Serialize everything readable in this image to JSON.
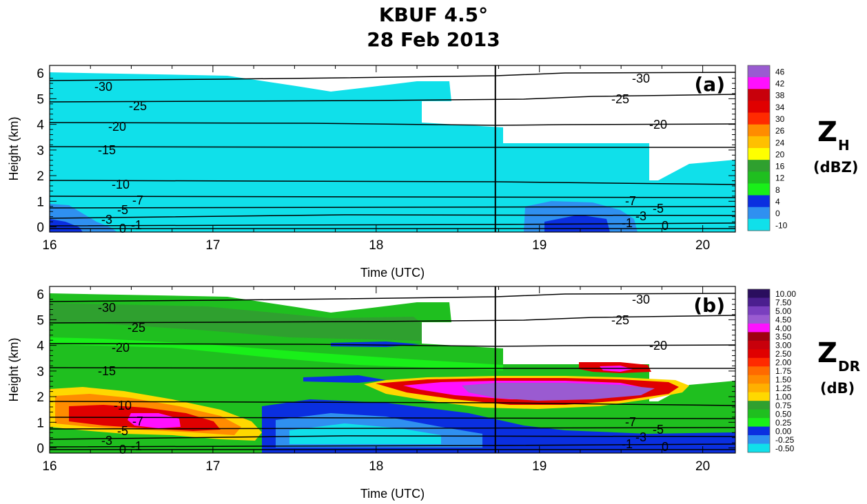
{
  "title": {
    "line1": "KBUF 4.5°",
    "line2": "28 Feb 2013"
  },
  "chart_data": [
    {
      "type": "heatmap",
      "panel_label": "(a)",
      "quantity": "Z",
      "quantity_subscript": "H",
      "unit": "(dBZ)",
      "xlabel": "Time (UTC)",
      "ylabel": "Height (km)",
      "x_ticks": [
        16,
        17,
        18,
        19,
        20
      ],
      "y_ticks": [
        0,
        1,
        2,
        3,
        4,
        5,
        6
      ],
      "xlim": [
        16,
        20.2
      ],
      "ylim": [
        -0.2,
        6.3
      ],
      "vertical_marker_time": 18.73,
      "colorbar": {
        "labels": [
          "46",
          "42",
          "38",
          "34",
          "30",
          "26",
          "24",
          "20",
          "16",
          "12",
          "8",
          "4",
          "0",
          "-10"
        ],
        "colors": [
          "#9a5bd1",
          "#ff10ff",
          "#c8000b",
          "#e00000",
          "#ff2a00",
          "#ff8c00",
          "#ffc000",
          "#ffff00",
          "#2fa02f",
          "#1fbf1f",
          "#19ef19",
          "#0a2fe0",
          "#2f90f0",
          "#10e0ea"
        ]
      },
      "isotherms": [
        {
          "temp": "-30",
          "height_start": 5.6,
          "height_end": 5.8
        },
        {
          "temp": "-25",
          "height_start": 4.7,
          "height_end": 4.9
        },
        {
          "temp": "-20",
          "height_start": 4.0,
          "height_end": 4.15
        },
        {
          "temp": "-15",
          "height_start": 3.05,
          "height_end": 3.1
        },
        {
          "temp": "-10",
          "height_start": 1.8,
          "height_end": 1.75
        },
        {
          "temp": "-7",
          "height_start": 1.3,
          "height_end": 1.3
        },
        {
          "temp": "-5",
          "height_start": 0.85,
          "height_end": 0.85
        },
        {
          "temp": "-3",
          "height_start": 0.45,
          "height_end": 0.45
        },
        {
          "temp": "-1",
          "height_start": 0.15,
          "height_end": 0.1
        },
        {
          "temp": "0",
          "height_start": 0.05,
          "height_end": 0.05
        }
      ]
    },
    {
      "type": "heatmap",
      "panel_label": "(b)",
      "quantity": "Z",
      "quantity_subscript": "DR",
      "unit": "(dB)",
      "xlabel": "Time (UTC)",
      "ylabel": "Height (km)",
      "x_ticks": [
        16,
        17,
        18,
        19,
        20
      ],
      "y_ticks": [
        0,
        1,
        2,
        3,
        4,
        5,
        6
      ],
      "xlim": [
        16,
        20.2
      ],
      "ylim": [
        -0.2,
        6.3
      ],
      "vertical_marker_time": 18.73,
      "colorbar": {
        "labels": [
          "10.00",
          "7.50",
          "5.00",
          "4.50",
          "4.00",
          "3.50",
          "3.00",
          "2.50",
          "2.00",
          "1.75",
          "1.50",
          "1.25",
          "1.00",
          "0.75",
          "0.50",
          "0.25",
          "0.00",
          "-0.25",
          "-0.50"
        ],
        "colors": [
          "#2a0e5e",
          "#4b1f8f",
          "#7a3fbf",
          "#9a5bd1",
          "#ff10ff",
          "#a00010",
          "#c8000b",
          "#e00000",
          "#ff2a00",
          "#ff6a00",
          "#ff8c00",
          "#ffb000",
          "#ffd800",
          "#2fa02f",
          "#1fbf1f",
          "#19ef19",
          "#0a2fe0",
          "#2f90f0",
          "#10e0ea"
        ]
      },
      "isotherms": [
        {
          "temp": "-30",
          "height_start": 5.6,
          "height_end": 5.8
        },
        {
          "temp": "-25",
          "height_start": 4.7,
          "height_end": 4.9
        },
        {
          "temp": "-20",
          "height_start": 4.0,
          "height_end": 4.15
        },
        {
          "temp": "-15",
          "height_start": 3.05,
          "height_end": 3.1
        },
        {
          "temp": "-10",
          "height_start": 1.8,
          "height_end": 1.75
        },
        {
          "temp": "-7",
          "height_start": 1.3,
          "height_end": 1.3
        },
        {
          "temp": "-5",
          "height_start": 0.85,
          "height_end": 0.85
        },
        {
          "temp": "-3",
          "height_start": 0.45,
          "height_end": 0.45
        },
        {
          "temp": "-1",
          "height_start": 0.15,
          "height_end": 0.1
        },
        {
          "temp": "0",
          "height_start": 0.05,
          "height_end": 0.05
        }
      ]
    }
  ]
}
